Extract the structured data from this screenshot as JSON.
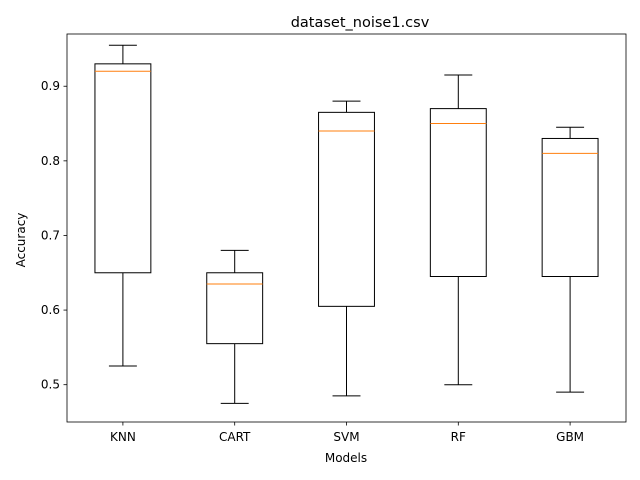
{
  "chart_data": {
    "type": "box",
    "title": "dataset_noise1.csv",
    "xlabel": "Models",
    "ylabel": "Accuracy",
    "ylim": [
      0.45,
      0.97
    ],
    "yticks": [
      0.5,
      0.6,
      0.7,
      0.8,
      0.9
    ],
    "ytick_labels": [
      "0.5",
      "0.6",
      "0.7",
      "0.8",
      "0.9"
    ],
    "categories": [
      "KNN",
      "CART",
      "SVM",
      "RF",
      "GBM"
    ],
    "boxes": [
      {
        "name": "KNN",
        "whislo": 0.525,
        "q1": 0.65,
        "med": 0.92,
        "q3": 0.93,
        "whishi": 0.955
      },
      {
        "name": "CART",
        "whislo": 0.475,
        "q1": 0.555,
        "med": 0.635,
        "q3": 0.65,
        "whishi": 0.68
      },
      {
        "name": "SVM",
        "whislo": 0.485,
        "q1": 0.605,
        "med": 0.84,
        "q3": 0.865,
        "whishi": 0.88
      },
      {
        "name": "RF",
        "whislo": 0.5,
        "q1": 0.645,
        "med": 0.85,
        "q3": 0.87,
        "whishi": 0.915
      },
      {
        "name": "GBM",
        "whislo": 0.49,
        "q1": 0.645,
        "med": 0.81,
        "q3": 0.83,
        "whishi": 0.845
      }
    ],
    "grid": false,
    "legend": "none",
    "colors": {
      "box": "#000000",
      "median": "#ff7f0e",
      "axes": "#000000"
    }
  }
}
